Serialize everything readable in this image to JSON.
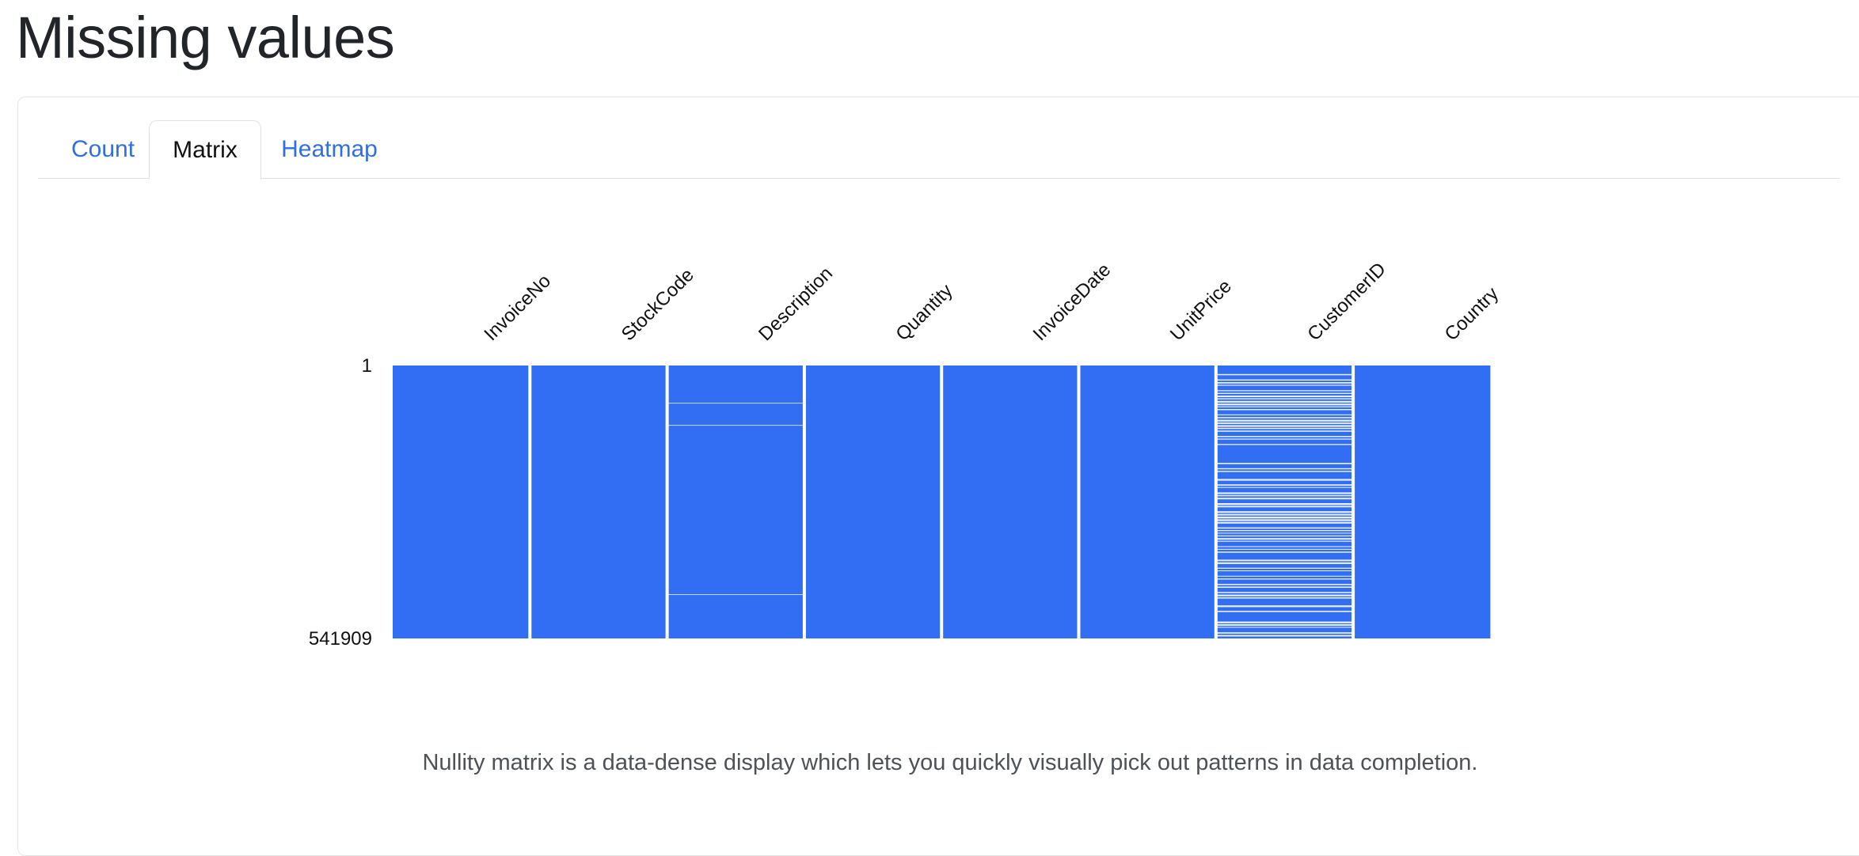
{
  "page": {
    "title": "Missing values"
  },
  "tabs": [
    {
      "label": "Count",
      "active": false
    },
    {
      "label": "Matrix",
      "active": true
    },
    {
      "label": "Heatmap",
      "active": false
    }
  ],
  "chart_data": {
    "type": "nullity-matrix",
    "columns": [
      "InvoiceNo",
      "StockCode",
      "Description",
      "Quantity",
      "InvoiceDate",
      "UnitPrice",
      "CustomerID",
      "Country"
    ],
    "row_labels": {
      "first": "1",
      "last": "541909"
    },
    "total_rows": 541909,
    "present_color": "#326ef3",
    "missing_color": "#ffffff",
    "missing_rows": {
      "Description": [
        74000,
        118000,
        454000
      ],
      "CustomerID": "dense"
    }
  },
  "caption": "Nullity matrix is a data-dense display which lets you quickly visually pick out patterns in data completion."
}
